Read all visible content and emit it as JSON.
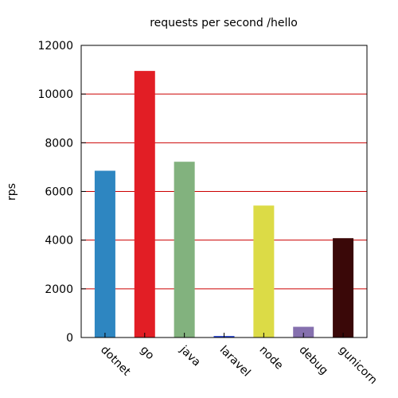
{
  "chart_data": {
    "type": "bar",
    "title": "requests per second /hello",
    "xlabel": "",
    "ylabel": "rps",
    "ylim": [
      0,
      12000
    ],
    "yticks": [
      0,
      2000,
      4000,
      6000,
      8000,
      10000,
      12000
    ],
    "grid": true,
    "grid_color": "#cc0000",
    "categories": [
      "dotnet",
      "go",
      "java",
      "laravel",
      "node",
      "debug",
      "gunicorn"
    ],
    "values": [
      6850,
      10950,
      7220,
      60,
      5420,
      440,
      4080
    ],
    "colors": [
      "#2e86c1",
      "#e21e25",
      "#82b27e",
      "#1c3ad1",
      "#dcdb46",
      "#8570ae",
      "#3a0808"
    ]
  }
}
